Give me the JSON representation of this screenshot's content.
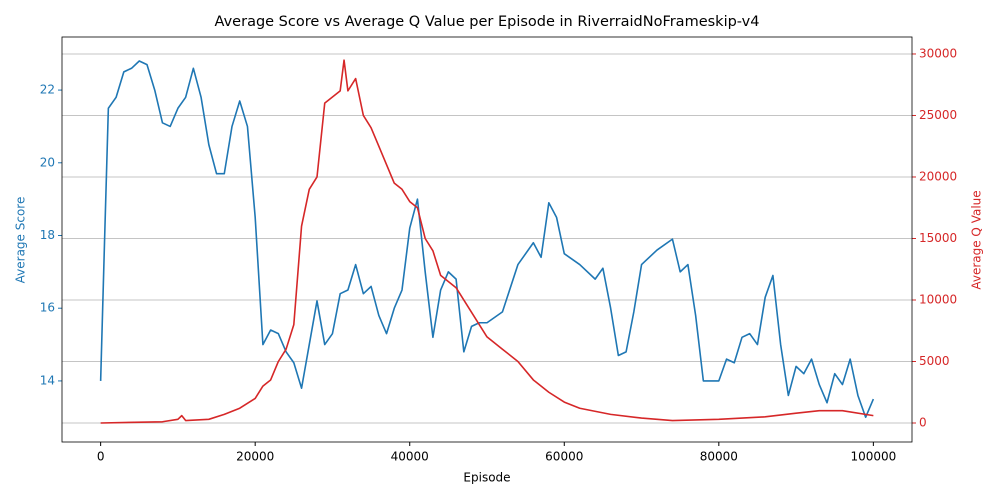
{
  "chart_data": {
    "type": "line",
    "title": "Average Score vs Average Q Value per Episode in RiverraidNoFrameskip-v4",
    "x_label": "Episode",
    "y_label": "Average Score",
    "y2_label": "Average Q Value",
    "xlim": [
      -5000,
      105000
    ],
    "xticks": [
      0,
      20000,
      40000,
      60000,
      80000,
      100000
    ],
    "ylim": [
      12.32,
      23.46
    ],
    "yticks": [
      14,
      16,
      18,
      20,
      22
    ],
    "y2lim": [
      -1545,
      31380
    ],
    "y2ticks": [
      0,
      5000,
      10000,
      15000,
      20000,
      25000,
      30000
    ],
    "grid": "y2",
    "series": [
      {
        "name": "Average Score",
        "color": "#1f77b4",
        "axis": "y",
        "x": [
          0,
          500,
          1000,
          2000,
          3000,
          4000,
          5000,
          6000,
          7000,
          8000,
          9000,
          10000,
          11000,
          12000,
          13000,
          14000,
          15000,
          16000,
          17000,
          18000,
          19000,
          20000,
          21000,
          22000,
          23000,
          24000,
          25000,
          26000,
          27000,
          28000,
          29000,
          30000,
          31000,
          32000,
          33000,
          34000,
          35000,
          36000,
          37000,
          38000,
          39000,
          40000,
          41000,
          42000,
          43000,
          44000,
          45000,
          46000,
          47000,
          48000,
          49000,
          50000,
          52000,
          54000,
          56000,
          57000,
          58000,
          59000,
          60000,
          62000,
          64000,
          65000,
          66000,
          67000,
          68000,
          69000,
          70000,
          72000,
          74000,
          75000,
          76000,
          77000,
          78000,
          80000,
          81000,
          82000,
          83000,
          84000,
          85000,
          86000,
          87000,
          88000,
          89000,
          90000,
          91000,
          92000,
          93000,
          94000,
          95000,
          96000,
          97000,
          98000,
          99000,
          100000
        ],
        "values": [
          14.0,
          17.8,
          21.5,
          21.8,
          22.5,
          22.6,
          22.8,
          22.7,
          22.0,
          21.1,
          21.0,
          21.5,
          21.8,
          22.6,
          21.8,
          20.5,
          19.7,
          19.7,
          21.0,
          21.7,
          21.0,
          18.5,
          15.0,
          15.4,
          15.3,
          14.8,
          14.5,
          13.8,
          15.0,
          16.2,
          15.0,
          15.3,
          16.4,
          16.5,
          17.2,
          16.4,
          16.6,
          15.8,
          15.3,
          16.0,
          16.5,
          18.2,
          19.0,
          17.0,
          15.2,
          16.5,
          17.0,
          16.8,
          14.8,
          15.5,
          15.6,
          15.6,
          15.9,
          17.2,
          17.8,
          17.4,
          18.9,
          18.5,
          17.5,
          17.2,
          16.8,
          17.1,
          16.0,
          14.7,
          14.8,
          15.9,
          17.2,
          17.6,
          17.9,
          17.0,
          17.2,
          15.8,
          14.0,
          14.0,
          14.6,
          14.5,
          15.2,
          15.3,
          15.0,
          16.3,
          16.9,
          15.0,
          13.6,
          14.4,
          14.2,
          14.6,
          13.9,
          13.4,
          14.2,
          13.9,
          14.6,
          13.6,
          13.0,
          13.5
        ]
      },
      {
        "name": "Average Q Value",
        "color": "#d62728",
        "axis": "y2",
        "x": [
          0,
          8000,
          10000,
          10500,
          11000,
          14000,
          16000,
          18000,
          20000,
          21000,
          22000,
          23000,
          24000,
          25000,
          26000,
          27000,
          28000,
          29000,
          30000,
          31000,
          31500,
          32000,
          33000,
          34000,
          35000,
          36000,
          37000,
          38000,
          39000,
          40000,
          41000,
          42000,
          43000,
          44000,
          46000,
          48000,
          50000,
          52000,
          54000,
          56000,
          58000,
          60000,
          62000,
          66000,
          70000,
          74000,
          80000,
          86000,
          90000,
          93000,
          96000,
          100000
        ],
        "values": [
          0,
          100,
          300,
          600,
          200,
          300,
          700,
          1200,
          2000,
          3000,
          3500,
          5000,
          6000,
          8000,
          16000,
          19000,
          20000,
          26000,
          26500,
          27000,
          29500,
          27000,
          28000,
          25000,
          24000,
          22500,
          21000,
          19500,
          19000,
          18000,
          17500,
          15000,
          14000,
          12000,
          11000,
          9000,
          7000,
          6000,
          5000,
          3500,
          2500,
          1700,
          1200,
          700,
          400,
          200,
          300,
          500,
          800,
          1000,
          1000,
          600
        ]
      }
    ]
  }
}
